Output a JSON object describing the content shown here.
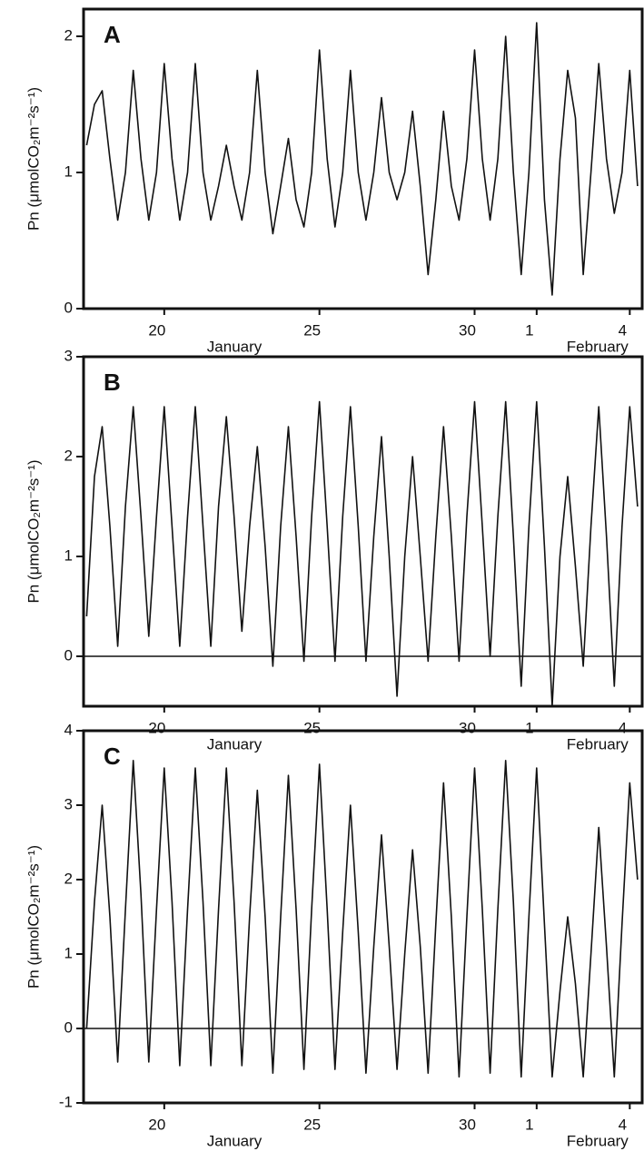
{
  "chart_data": [
    {
      "type": "line",
      "panel_label": "A",
      "y_label": "Pn  (μmolCO₂m⁻²s⁻¹)",
      "month_labels": [
        "January",
        "February"
      ],
      "xlim": [
        17.4,
        35.4
      ],
      "xticks": [
        20,
        25,
        30,
        {
          "value": 32,
          "label": "1"
        },
        {
          "value": 35,
          "label": "4"
        }
      ],
      "ylim": [
        0,
        2.2
      ],
      "yticks": [
        0,
        1,
        2
      ],
      "zero_line": false,
      "color": "#111111",
      "x": [
        17.5,
        17.75,
        18,
        18.25,
        18.5,
        18.75,
        19,
        19.25,
        19.5,
        19.75,
        20,
        20.25,
        20.5,
        20.75,
        21,
        21.25,
        21.5,
        21.75,
        22,
        22.25,
        22.5,
        22.75,
        23,
        23.25,
        23.5,
        23.75,
        24,
        24.25,
        24.5,
        24.75,
        25,
        25.25,
        25.5,
        25.75,
        26,
        26.25,
        26.5,
        26.75,
        27,
        27.25,
        27.5,
        27.75,
        28,
        28.25,
        28.5,
        28.75,
        29,
        29.25,
        29.5,
        29.75,
        30,
        30.25,
        30.5,
        30.75,
        31,
        31.25,
        31.5,
        31.75,
        32,
        32.25,
        32.5,
        32.75,
        33,
        33.25,
        33.5,
        33.75,
        34,
        34.25,
        34.5,
        34.75,
        35,
        35.25
      ],
      "values": [
        1.2,
        1.5,
        1.6,
        1.1,
        0.65,
        1.0,
        1.75,
        1.1,
        0.65,
        1.0,
        1.8,
        1.1,
        0.65,
        1.0,
        1.8,
        1.0,
        0.65,
        0.9,
        1.2,
        0.9,
        0.65,
        1.0,
        1.75,
        1.0,
        0.55,
        0.9,
        1.25,
        0.8,
        0.6,
        1.0,
        1.9,
        1.1,
        0.6,
        1.0,
        1.75,
        1.0,
        0.65,
        1.0,
        1.55,
        1.0,
        0.8,
        1.0,
        1.45,
        0.9,
        0.25,
        0.8,
        1.45,
        0.9,
        0.65,
        1.1,
        1.9,
        1.1,
        0.65,
        1.1,
        2.0,
        1.0,
        0.25,
        1.0,
        2.1,
        0.8,
        0.1,
        1.1,
        1.75,
        1.4,
        0.25,
        1.0,
        1.8,
        1.1,
        0.7,
        1.0,
        1.75,
        0.9
      ]
    },
    {
      "type": "line",
      "panel_label": "B",
      "y_label": "Pn  (μmolCO₂m⁻²s⁻¹)",
      "month_labels": [
        "January",
        "February"
      ],
      "xlim": [
        17.4,
        35.4
      ],
      "xticks": [
        20,
        25,
        30,
        {
          "value": 32,
          "label": "1"
        },
        {
          "value": 35,
          "label": "4"
        }
      ],
      "ylim": [
        -0.5,
        3
      ],
      "yticks": [
        0,
        1,
        2,
        3
      ],
      "zero_line": true,
      "color": "#111111",
      "x": [
        17.5,
        17.75,
        18,
        18.25,
        18.5,
        18.75,
        19,
        19.25,
        19.5,
        19.75,
        20,
        20.25,
        20.5,
        20.75,
        21,
        21.25,
        21.5,
        21.75,
        22,
        22.25,
        22.5,
        22.75,
        23,
        23.25,
        23.5,
        23.75,
        24,
        24.25,
        24.5,
        24.75,
        25,
        25.25,
        25.5,
        25.75,
        26,
        26.25,
        26.5,
        26.75,
        27,
        27.25,
        27.5,
        27.75,
        28,
        28.25,
        28.5,
        28.75,
        29,
        29.25,
        29.5,
        29.75,
        30,
        30.25,
        30.5,
        30.75,
        31,
        31.25,
        31.5,
        31.75,
        32,
        32.25,
        32.5,
        32.75,
        33,
        33.25,
        33.5,
        33.75,
        34,
        34.25,
        34.5,
        34.75,
        35,
        35.25
      ],
      "values": [
        0.4,
        1.8,
        2.3,
        1.3,
        0.1,
        1.5,
        2.5,
        1.4,
        0.2,
        1.4,
        2.5,
        1.3,
        0.1,
        1.4,
        2.5,
        1.3,
        0.1,
        1.5,
        2.4,
        1.4,
        0.25,
        1.3,
        2.1,
        1.1,
        -0.1,
        1.3,
        2.3,
        1.2,
        -0.05,
        1.4,
        2.55,
        1.3,
        -0.05,
        1.4,
        2.5,
        1.3,
        -0.05,
        1.2,
        2.2,
        1.0,
        -0.4,
        1.0,
        2.0,
        1.0,
        -0.05,
        1.2,
        2.3,
        1.2,
        -0.05,
        1.4,
        2.55,
        1.3,
        0.0,
        1.4,
        2.55,
        1.2,
        -0.3,
        1.3,
        2.55,
        1.1,
        -0.5,
        1.0,
        1.8,
        0.9,
        -0.1,
        1.3,
        2.5,
        1.2,
        -0.3,
        1.3,
        2.5,
        1.5
      ]
    },
    {
      "type": "line",
      "panel_label": "C",
      "y_label": "Pn  (μmolCO₂m⁻²s⁻¹)",
      "month_labels": [
        "January",
        "February"
      ],
      "xlim": [
        17.4,
        35.4
      ],
      "xticks": [
        20,
        25,
        30,
        {
          "value": 32,
          "label": "1"
        },
        {
          "value": 35,
          "label": "4"
        }
      ],
      "ylim": [
        -1,
        4
      ],
      "yticks": [
        -1,
        0,
        1,
        2,
        3,
        4
      ],
      "zero_line": true,
      "color": "#111111",
      "x": [
        17.5,
        17.75,
        18,
        18.25,
        18.5,
        18.75,
        19,
        19.25,
        19.5,
        19.75,
        20,
        20.25,
        20.5,
        20.75,
        21,
        21.25,
        21.5,
        21.75,
        22,
        22.25,
        22.5,
        22.75,
        23,
        23.25,
        23.5,
        23.75,
        24,
        24.25,
        24.5,
        24.75,
        25,
        25.25,
        25.5,
        25.75,
        26,
        26.25,
        26.5,
        26.75,
        27,
        27.25,
        27.5,
        27.75,
        28,
        28.25,
        28.5,
        28.75,
        29,
        29.25,
        29.5,
        29.75,
        30,
        30.25,
        30.5,
        30.75,
        31,
        31.25,
        31.5,
        31.75,
        32,
        32.25,
        32.5,
        32.75,
        33,
        33.25,
        33.5,
        33.75,
        34,
        34.25,
        34.5,
        34.75,
        35,
        35.25
      ],
      "values": [
        0.0,
        1.7,
        3.0,
        1.5,
        -0.45,
        1.6,
        3.6,
        1.8,
        -0.45,
        1.6,
        3.5,
        1.7,
        -0.5,
        1.6,
        3.5,
        1.7,
        -0.5,
        1.6,
        3.5,
        1.7,
        -0.5,
        1.5,
        3.2,
        1.5,
        -0.6,
        1.5,
        3.4,
        1.6,
        -0.55,
        1.6,
        3.55,
        1.6,
        -0.55,
        1.3,
        3.0,
        1.3,
        -0.6,
        1.1,
        2.6,
        1.1,
        -0.55,
        1.0,
        2.4,
        1.1,
        -0.6,
        1.4,
        3.3,
        1.5,
        -0.65,
        1.5,
        3.5,
        1.6,
        -0.6,
        1.6,
        3.6,
        1.7,
        -0.65,
        1.5,
        3.5,
        1.4,
        -0.65,
        0.5,
        1.5,
        0.6,
        -0.65,
        1.0,
        2.7,
        1.1,
        -0.65,
        1.4,
        3.3,
        2.0
      ]
    }
  ]
}
